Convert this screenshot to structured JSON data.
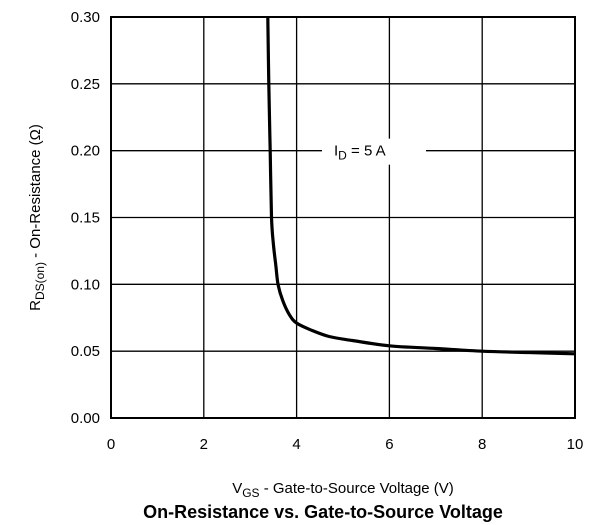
{
  "chart_data": {
    "type": "line",
    "title": "On-Resistance vs. Gate-to-Source Voltage",
    "xlabel": {
      "main": "V",
      "sub": "GS",
      "rest": " - Gate-to-Source Voltage (V)"
    },
    "ylabel": {
      "main": "R",
      "sub": "DS(on)",
      "rest": " - On-Resistance (Ω)"
    },
    "xlim": [
      0,
      10
    ],
    "ylim": [
      0,
      0.3
    ],
    "x_ticks": [
      0,
      2,
      4,
      6,
      8,
      10
    ],
    "x_tick_labels": [
      "0",
      "2",
      "4",
      "6",
      "8",
      "10"
    ],
    "y_ticks": [
      0,
      0.05,
      0.1,
      0.15,
      0.2,
      0.25,
      0.3
    ],
    "y_tick_labels": [
      "0.00",
      "0.05",
      "0.10",
      "0.15",
      "0.20",
      "0.25",
      "0.30"
    ],
    "grid": true,
    "annotation": {
      "main": "I",
      "sub": "D",
      "rest": " = 5 A"
    },
    "series": [
      {
        "x": [
          3.38,
          3.4,
          3.43,
          3.46,
          3.5,
          3.55,
          3.6,
          3.7,
          3.85,
          4.0,
          4.3,
          4.7,
          5.2,
          6.0,
          7.0,
          8.0,
          9.0,
          10.0
        ],
        "y": [
          0.3,
          0.25,
          0.2,
          0.15,
          0.13,
          0.115,
          0.1,
          0.088,
          0.077,
          0.071,
          0.066,
          0.061,
          0.058,
          0.054,
          0.052,
          0.05,
          0.049,
          0.048
        ]
      }
    ]
  }
}
